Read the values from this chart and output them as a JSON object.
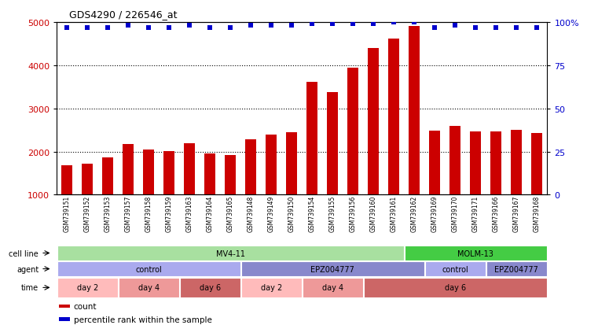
{
  "title": "GDS4290 / 226546_at",
  "samples": [
    "GSM739151",
    "GSM739152",
    "GSM739153",
    "GSM739157",
    "GSM739158",
    "GSM739159",
    "GSM739163",
    "GSM739164",
    "GSM739165",
    "GSM739148",
    "GSM739149",
    "GSM739150",
    "GSM739154",
    "GSM739155",
    "GSM739156",
    "GSM739160",
    "GSM739161",
    "GSM739162",
    "GSM739169",
    "GSM739170",
    "GSM739171",
    "GSM739166",
    "GSM739167",
    "GSM739168"
  ],
  "counts": [
    1680,
    1710,
    1860,
    2180,
    2050,
    2010,
    2200,
    1950,
    1920,
    2280,
    2390,
    2450,
    3620,
    3380,
    3950,
    4400,
    4620,
    4900,
    2480,
    2600,
    2470,
    2460,
    2500,
    2430
  ],
  "percentile_ranks": [
    97,
    97,
    97,
    98,
    97,
    97,
    98,
    97,
    97,
    98,
    98,
    98,
    99,
    99,
    99,
    99,
    100,
    100,
    97,
    98,
    97,
    97,
    97,
    97
  ],
  "bar_color": "#cc0000",
  "dot_color": "#0000cc",
  "ylim_left": [
    1000,
    5000
  ],
  "ylim_right": [
    0,
    100
  ],
  "yticks_left": [
    1000,
    2000,
    3000,
    4000,
    5000
  ],
  "yticks_right": [
    0,
    25,
    50,
    75,
    100
  ],
  "grid_color": "black",
  "cell_line_groups": [
    {
      "label": "MV4-11",
      "start": 0,
      "end": 17,
      "color": "#a8e0a0"
    },
    {
      "label": "MOLM-13",
      "start": 17,
      "end": 24,
      "color": "#44cc44"
    }
  ],
  "agent_groups": [
    {
      "label": "control",
      "start": 0,
      "end": 9,
      "color": "#aaaaee"
    },
    {
      "label": "EPZ004777",
      "start": 9,
      "end": 18,
      "color": "#8888cc"
    },
    {
      "label": "control",
      "start": 18,
      "end": 21,
      "color": "#aaaaee"
    },
    {
      "label": "EPZ004777",
      "start": 21,
      "end": 24,
      "color": "#8888cc"
    }
  ],
  "time_groups": [
    {
      "label": "day 2",
      "start": 0,
      "end": 3,
      "color": "#ffbbbb"
    },
    {
      "label": "day 4",
      "start": 3,
      "end": 6,
      "color": "#ee9999"
    },
    {
      "label": "day 6",
      "start": 6,
      "end": 9,
      "color": "#cc6666"
    },
    {
      "label": "day 2",
      "start": 9,
      "end": 12,
      "color": "#ffbbbb"
    },
    {
      "label": "day 4",
      "start": 12,
      "end": 15,
      "color": "#ee9999"
    },
    {
      "label": "day 6",
      "start": 15,
      "end": 24,
      "color": "#cc6666"
    }
  ],
  "legend": [
    {
      "label": "count",
      "color": "#cc0000"
    },
    {
      "label": "percentile rank within the sample",
      "color": "#0000cc"
    }
  ],
  "background_color": "#ffffff",
  "tick_label_color_left": "#cc0000",
  "tick_label_color_right": "#0000cc"
}
